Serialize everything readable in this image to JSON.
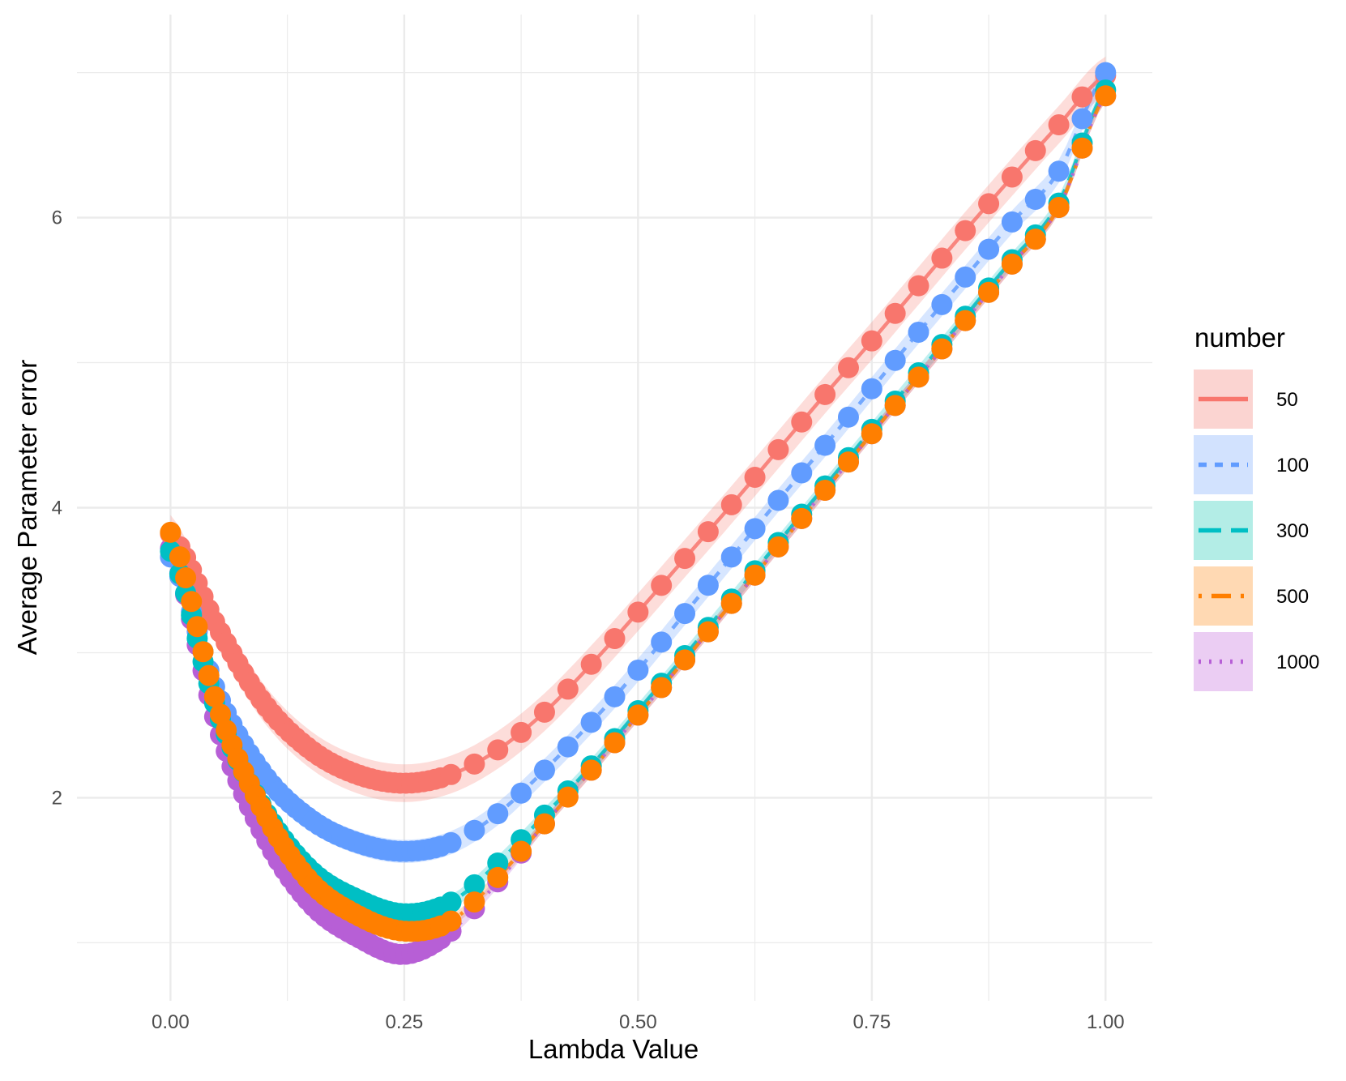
{
  "chart_data": {
    "type": "line",
    "xlabel": "Lambda Value",
    "ylabel": "Average Parameter error",
    "xlim": [
      -0.1,
      1.05
    ],
    "ylim": [
      0.6,
      7.4
    ],
    "x_ticks": [
      0.0,
      0.25,
      0.5,
      0.75,
      1.0
    ],
    "x_tick_labels": [
      "0.00",
      "0.25",
      "0.50",
      "0.75",
      "1.00"
    ],
    "y_ticks": [
      2,
      4,
      6
    ],
    "y_tick_labels": [
      "2",
      "4",
      "6"
    ],
    "grid": true,
    "legend": {
      "title": "number",
      "position": "right"
    },
    "x": [
      0.0,
      0.05,
      0.1,
      0.15,
      0.2,
      0.25,
      0.3,
      0.35,
      0.4,
      0.45,
      0.5,
      0.55,
      0.6,
      0.65,
      0.7,
      0.75,
      0.8,
      0.85,
      0.9,
      0.95,
      1.0
    ],
    "series": [
      {
        "name": "50",
        "color": "#F8766D",
        "dash": "solid",
        "band": 0.13,
        "values": [
          3.82,
          3.18,
          2.65,
          2.33,
          2.16,
          2.1,
          2.16,
          2.33,
          2.59,
          2.92,
          3.28,
          3.65,
          4.02,
          4.4,
          4.78,
          5.15,
          5.53,
          5.91,
          6.28,
          6.64,
          6.98
        ]
      },
      {
        "name": "100",
        "color": "#619CFF",
        "dash": "shortdash",
        "band": 0.08,
        "values": [
          3.66,
          2.72,
          2.16,
          1.85,
          1.69,
          1.63,
          1.69,
          1.89,
          2.19,
          2.52,
          2.88,
          3.27,
          3.66,
          4.05,
          4.43,
          4.82,
          5.21,
          5.59,
          5.97,
          6.32,
          7.0
        ]
      },
      {
        "name": "300",
        "color": "#00BFC4",
        "dash": "longdash",
        "band": 0.05,
        "values": [
          3.7,
          2.6,
          1.92,
          1.5,
          1.3,
          1.2,
          1.28,
          1.55,
          1.88,
          2.22,
          2.6,
          2.98,
          3.37,
          3.76,
          4.15,
          4.54,
          4.93,
          5.32,
          5.71,
          6.1,
          6.88
        ]
      },
      {
        "name": "500",
        "color": "#FF7F00",
        "dash": "dashdot",
        "band": 0.04,
        "values": [
          3.83,
          2.64,
          1.9,
          1.42,
          1.19,
          1.08,
          1.15,
          1.45,
          1.82,
          2.19,
          2.57,
          2.95,
          3.34,
          3.73,
          4.12,
          4.51,
          4.9,
          5.29,
          5.68,
          6.07,
          6.84
        ]
      },
      {
        "name": "1000",
        "color": "#B75FD6",
        "dash": "dotted",
        "band": 0.04,
        "values": [
          3.72,
          2.5,
          1.74,
          1.27,
          1.04,
          0.92,
          1.08,
          1.42,
          1.82,
          2.19,
          2.57,
          2.95,
          3.34,
          3.73,
          4.12,
          4.51,
          4.9,
          5.29,
          5.68,
          6.07,
          6.84
        ]
      }
    ],
    "legend_fills": [
      "#FBD4D1",
      "#D2E2FE",
      "#B3EDE6",
      "#FFD9B3",
      "#EBCDF3"
    ]
  }
}
